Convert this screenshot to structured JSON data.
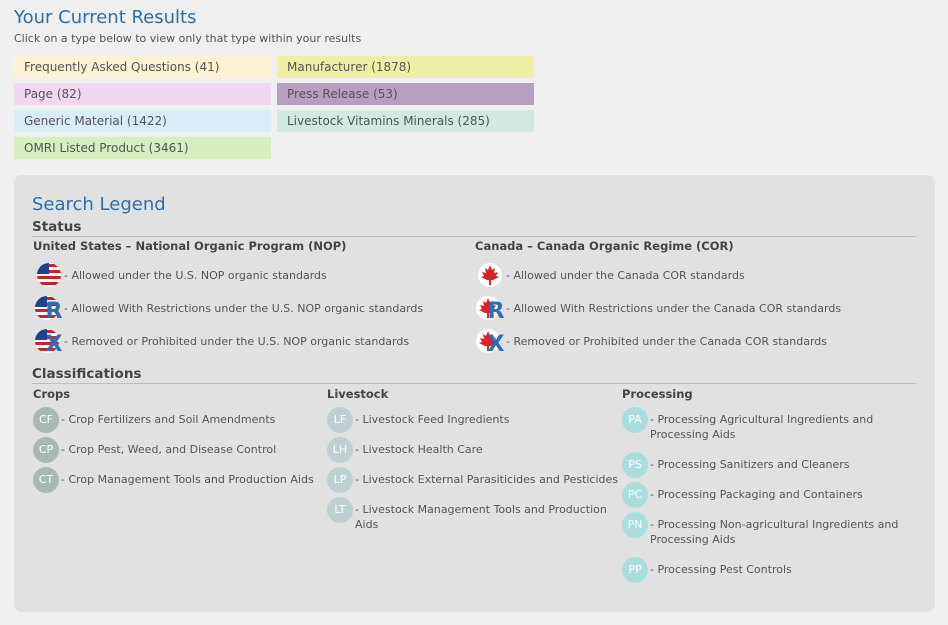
{
  "results": {
    "title": "Your Current Results",
    "subtitle": "Click on a type below to view only that type within your results",
    "types": [
      {
        "label": "Frequently Asked Questions (41)",
        "color": "#fbf2d4"
      },
      {
        "label": "Manufacturer (1878)",
        "color": "#eff0a6"
      },
      {
        "label": "Page (82)",
        "color": "#f0d9f0"
      },
      {
        "label": "Press Release (53)",
        "color": "#b7a0bf"
      },
      {
        "label": "Generic Material (1422)",
        "color": "#d8eef6"
      },
      {
        "label": "Livestock Vitamins Minerals (285)",
        "color": "#d3e8e3"
      },
      {
        "label": "OMRI Listed Product (3461)",
        "color": "#d6eec0"
      }
    ]
  },
  "legend": {
    "title": "Search Legend",
    "status": {
      "heading": "Status",
      "us": {
        "heading": "United States – National Organic Program (NOP)",
        "items": [
          {
            "icon": "us-flag-allowed-icon",
            "text": "- Allowed under the U.S. NOP organic standards"
          },
          {
            "icon": "us-flag-restricted-icon",
            "text": "- Allowed With Restrictions under the U.S. NOP organic standards"
          },
          {
            "icon": "us-flag-prohibited-icon",
            "text": "- Removed or Prohibited under the U.S. NOP organic standards"
          }
        ]
      },
      "canada": {
        "heading": "Canada – Canada Organic Regime (COR)",
        "items": [
          {
            "icon": "canada-flag-allowed-icon",
            "text": "- Allowed under the Canada COR standards"
          },
          {
            "icon": "canada-flag-restricted-icon",
            "text": "- Allowed With Restrictions under the Canada COR standards"
          },
          {
            "icon": "canada-flag-prohibited-icon",
            "text": "- Removed or Prohibited under the Canada COR standards"
          }
        ]
      }
    },
    "classifications": {
      "heading": "Classifications",
      "crops": {
        "heading": "Crops",
        "items": [
          {
            "code": "CF",
            "text": "- Crop Fertilizers and Soil Amendments"
          },
          {
            "code": "CP",
            "text": "- Crop Pest, Weed, and Disease Control"
          },
          {
            "code": "CT",
            "text": "- Crop Management Tools and Production Aids"
          }
        ]
      },
      "livestock": {
        "heading": "Livestock",
        "items": [
          {
            "code": "LF",
            "text": "- Livestock Feed Ingredients"
          },
          {
            "code": "LH",
            "text": "- Livestock Health Care"
          },
          {
            "code": "LP",
            "text": "- Livestock External Parasiticides and Pesticides"
          },
          {
            "code": "LT",
            "text": "- Livestock Management Tools and Production Aids"
          }
        ]
      },
      "processing": {
        "heading": "Processing",
        "items": [
          {
            "code": "PA",
            "text": "- Processing Agricultural Ingredients and Processing Aids"
          },
          {
            "code": "PS",
            "text": "- Processing Sanitizers and Cleaners"
          },
          {
            "code": "PC",
            "text": "- Processing Packaging and Containers"
          },
          {
            "code": "PN",
            "text": "- Processing Non-agricultural Ingredients and Processing Aids"
          },
          {
            "code": "PP",
            "text": "- Processing Pest Controls"
          }
        ]
      }
    }
  }
}
